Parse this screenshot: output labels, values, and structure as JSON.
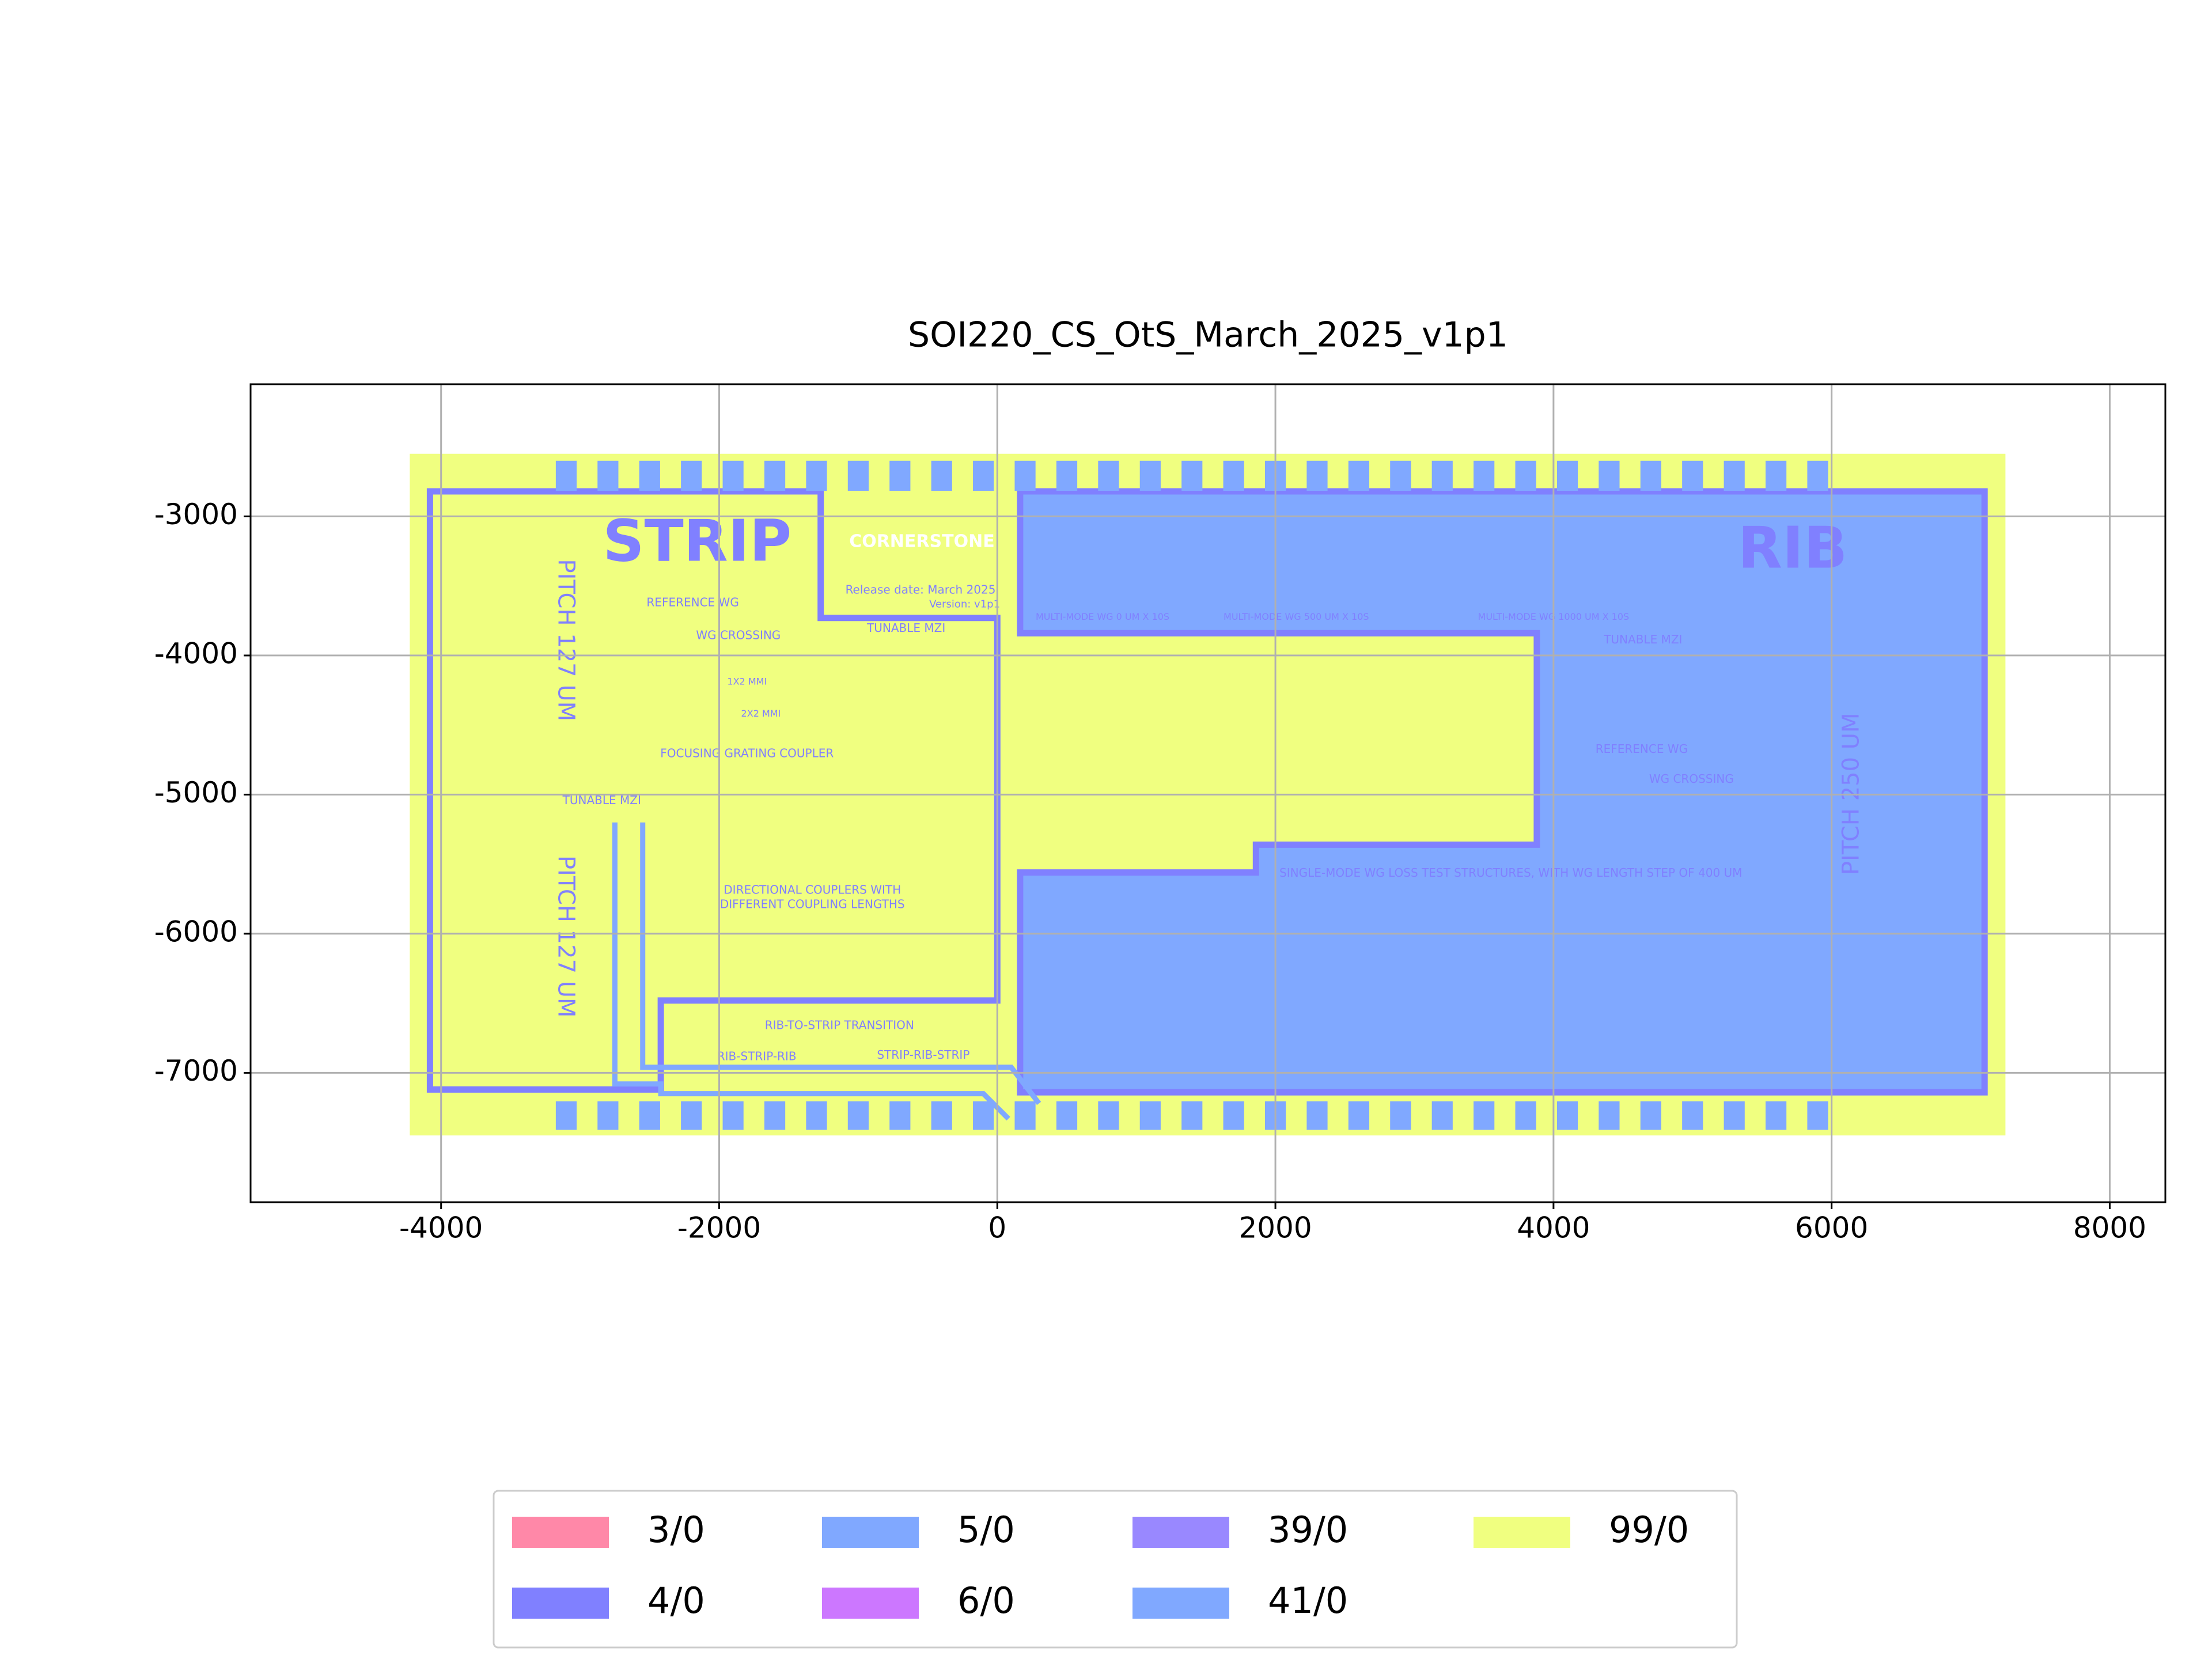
{
  "chart_data": {
    "type": "layout",
    "title": "SOI220_CS_OtS_March_2025_v1p1",
    "xlim": [
      -5370,
      8400
    ],
    "ylim": [
      -7930,
      -2050
    ],
    "xticks": [
      -4000,
      -2000,
      0,
      2000,
      4000,
      6000,
      8000
    ],
    "yticks": [
      -7000,
      -6000,
      -5000,
      -4000,
      -3000
    ],
    "grid": true,
    "legend": "lower center",
    "series": [
      {
        "name": "3/0",
        "color": "#ff88a8"
      },
      {
        "name": "4/0",
        "color": "#8080ff"
      },
      {
        "name": "5/0",
        "color": "#80a8ff"
      },
      {
        "name": "6/0",
        "color": "#cc77ff"
      },
      {
        "name": "39/0",
        "color": "#9988ff"
      },
      {
        "name": "41/0",
        "color": "#80a8ff"
      },
      {
        "name": "99/0",
        "color": "#f0ff80"
      }
    ],
    "shapes": [
      {
        "layer": "99/0",
        "outline": false,
        "points": [
          [
            -4225,
            -2550
          ],
          [
            7250,
            -2550
          ],
          [
            7250,
            -7450
          ],
          [
            -4225,
            -7450
          ]
        ]
      },
      {
        "layer": "5/0",
        "outline": false,
        "points": [
          [
            164,
            -2820
          ],
          [
            7100,
            -2820
          ],
          [
            7100,
            -7140
          ],
          [
            164,
            -7140
          ],
          [
            164,
            -5560
          ],
          [
            1860,
            -5560
          ],
          [
            1860,
            -5360
          ],
          [
            3880,
            -5360
          ],
          [
            3880,
            -3840
          ],
          [
            164,
            -3840
          ]
        ]
      },
      {
        "layer": "4/0",
        "outline": true,
        "points": [
          [
            164,
            -2820
          ],
          [
            7100,
            -2820
          ],
          [
            7100,
            -7140
          ],
          [
            164,
            -7140
          ],
          [
            164,
            -5560
          ],
          [
            1860,
            -5560
          ],
          [
            1860,
            -5360
          ],
          [
            3880,
            -5360
          ],
          [
            3880,
            -3840
          ],
          [
            164,
            -3840
          ]
        ]
      },
      {
        "layer": "4/0",
        "outline": true,
        "points": [
          [
            -4080,
            -2820
          ],
          [
            -1270,
            -2820
          ],
          [
            -1270,
            -3730
          ],
          [
            0,
            -3730
          ],
          [
            0,
            -6480
          ],
          [
            -2420,
            -6480
          ],
          [
            -2420,
            -7120
          ],
          [
            -4080,
            -7120
          ]
        ]
      },
      {
        "layer": "41/0",
        "outline": true,
        "points": [
          [
            -2750,
            -5200
          ],
          [
            -2750,
            -7080
          ],
          [
            -2420,
            -7080
          ],
          [
            -2420,
            -7150
          ],
          [
            -100,
            -7150
          ],
          [
            80,
            -7330
          ]
        ]
      },
      {
        "layer": "41/0",
        "outline": true,
        "points": [
          [
            -2550,
            -5200
          ],
          [
            -2550,
            -6960
          ],
          [
            100,
            -6960
          ],
          [
            300,
            -7220
          ]
        ]
      }
    ],
    "pads": {
      "layer": "5/0",
      "width": 150,
      "top_y": [
        -2816,
        -2600
      ],
      "bottom_y": [
        -7410,
        -7205
      ],
      "x": [
        -3100,
        -2800,
        -2500,
        -2200,
        -1900,
        -1600,
        -1300,
        -1000,
        -700,
        -400,
        -100,
        200,
        500,
        800,
        1100,
        1400,
        1700,
        2000,
        2300,
        2600,
        2900,
        3200,
        3500,
        3800,
        4100,
        4400,
        4700,
        5000,
        5300,
        5600,
        5900
      ]
    },
    "labels": [
      "STRIP",
      "RIB",
      "CORNERSTONE",
      "Release date: March 2025",
      "Version: v1p1",
      "PITCH 127 UM",
      "PITCH 127 UM",
      "PITCH 250 UM",
      "TUNABLE MZI",
      "REFERENCE WG",
      "WG CROSSING",
      "FOCUSING GRATING COUPLER",
      "DIRECTIONAL COUPLERS WITH",
      "DIFFERENT COUPLING LENGTHS",
      "RIB-TO-STRIP TRANSITION",
      "RIB-STRIP-RIB",
      "STRIP-RIB-STRIP",
      "SINGLE-MODE WG LOSS TEST STRUCTURES, WITH WG LENGTH STEP OF 400 UM",
      "TUNABLE MZI",
      "REFERENCE WG",
      "WG CROSSING",
      "TUNABLE MZI",
      "1X2 MMI",
      "2X2 MMI",
      "MULTI-MODE WG 0 UM X 10S",
      "MULTI-MODE WG 500 UM X 10S",
      "MULTI-MODE WG 1000 UM X 10S"
    ]
  }
}
